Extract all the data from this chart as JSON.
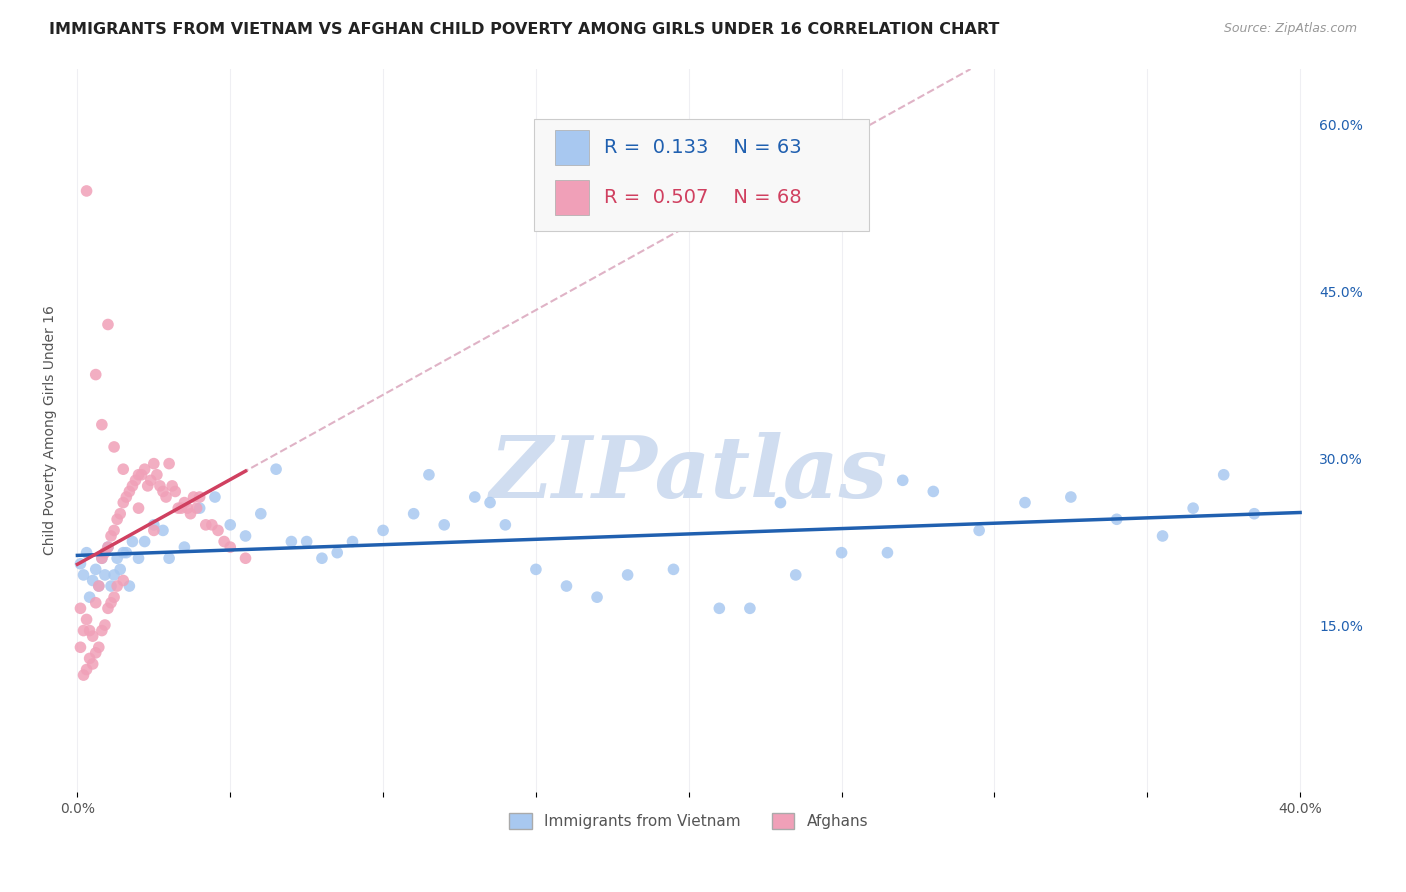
{
  "title": "IMMIGRANTS FROM VIETNAM VS AFGHAN CHILD POVERTY AMONG GIRLS UNDER 16 CORRELATION CHART",
  "source": "Source: ZipAtlas.com",
  "ylabel": "Child Poverty Among Girls Under 16",
  "xlim": [
    -0.003,
    0.403
  ],
  "ylim": [
    0.0,
    0.65
  ],
  "xtick_positions": [
    0.0,
    0.05,
    0.1,
    0.15,
    0.2,
    0.25,
    0.3,
    0.35,
    0.4
  ],
  "xtick_labels": [
    "0.0%",
    "",
    "",
    "",
    "",
    "",
    "",
    "",
    "40.0%"
  ],
  "ytick_vals_right": [
    0.15,
    0.3,
    0.45,
    0.6
  ],
  "ytick_labels_right": [
    "15.0%",
    "30.0%",
    "45.0%",
    "60.0%"
  ],
  "color_vietnam": "#a8c8f0",
  "color_afghan": "#f0a0b8",
  "color_vietnam_line": "#2060b0",
  "color_afghan_line": "#d04060",
  "color_dashed": "#d8a0b8",
  "background_color": "#ffffff",
  "grid_color": "#e0e0e8",
  "watermark_color": "#d0ddf0",
  "title_fontsize": 11.5,
  "source_fontsize": 9,
  "axis_fontsize": 10,
  "legend_fontsize": 14,
  "vietnam_x": [
    0.001,
    0.002,
    0.003,
    0.004,
    0.005,
    0.006,
    0.007,
    0.008,
    0.009,
    0.01,
    0.011,
    0.012,
    0.013,
    0.014,
    0.015,
    0.016,
    0.017,
    0.018,
    0.02,
    0.022,
    0.025,
    0.028,
    0.03,
    0.035,
    0.04,
    0.045,
    0.05,
    0.055,
    0.06,
    0.065,
    0.07,
    0.075,
    0.08,
    0.085,
    0.09,
    0.1,
    0.11,
    0.12,
    0.13,
    0.14,
    0.15,
    0.16,
    0.17,
    0.18,
    0.195,
    0.21,
    0.22,
    0.235,
    0.25,
    0.265,
    0.28,
    0.295,
    0.31,
    0.325,
    0.34,
    0.355,
    0.365,
    0.375,
    0.385,
    0.115,
    0.135,
    0.23,
    0.27
  ],
  "vietnam_y": [
    0.205,
    0.195,
    0.215,
    0.175,
    0.19,
    0.2,
    0.185,
    0.21,
    0.195,
    0.22,
    0.185,
    0.195,
    0.21,
    0.2,
    0.215,
    0.215,
    0.185,
    0.225,
    0.21,
    0.225,
    0.24,
    0.235,
    0.21,
    0.22,
    0.255,
    0.265,
    0.24,
    0.23,
    0.25,
    0.29,
    0.225,
    0.225,
    0.21,
    0.215,
    0.225,
    0.235,
    0.25,
    0.24,
    0.265,
    0.24,
    0.2,
    0.185,
    0.175,
    0.195,
    0.2,
    0.165,
    0.165,
    0.195,
    0.215,
    0.215,
    0.27,
    0.235,
    0.26,
    0.265,
    0.245,
    0.23,
    0.255,
    0.285,
    0.25,
    0.285,
    0.26,
    0.26,
    0.28
  ],
  "afghan_x": [
    0.001,
    0.001,
    0.002,
    0.002,
    0.003,
    0.003,
    0.004,
    0.004,
    0.005,
    0.005,
    0.006,
    0.006,
    0.007,
    0.007,
    0.008,
    0.008,
    0.009,
    0.009,
    0.01,
    0.01,
    0.011,
    0.011,
    0.012,
    0.012,
    0.013,
    0.013,
    0.014,
    0.015,
    0.015,
    0.016,
    0.017,
    0.018,
    0.019,
    0.02,
    0.021,
    0.022,
    0.023,
    0.024,
    0.025,
    0.026,
    0.027,
    0.028,
    0.029,
    0.03,
    0.031,
    0.032,
    0.033,
    0.034,
    0.035,
    0.036,
    0.037,
    0.038,
    0.039,
    0.04,
    0.042,
    0.044,
    0.046,
    0.048,
    0.05,
    0.055,
    0.003,
    0.01,
    0.006,
    0.008,
    0.012,
    0.015,
    0.02,
    0.025
  ],
  "afghan_y": [
    0.165,
    0.13,
    0.145,
    0.105,
    0.155,
    0.11,
    0.145,
    0.12,
    0.14,
    0.115,
    0.17,
    0.125,
    0.185,
    0.13,
    0.21,
    0.145,
    0.215,
    0.15,
    0.22,
    0.165,
    0.23,
    0.17,
    0.235,
    0.175,
    0.245,
    0.185,
    0.25,
    0.26,
    0.19,
    0.265,
    0.27,
    0.275,
    0.28,
    0.285,
    0.285,
    0.29,
    0.275,
    0.28,
    0.295,
    0.285,
    0.275,
    0.27,
    0.265,
    0.295,
    0.275,
    0.27,
    0.255,
    0.255,
    0.26,
    0.255,
    0.25,
    0.265,
    0.255,
    0.265,
    0.24,
    0.24,
    0.235,
    0.225,
    0.22,
    0.21,
    0.54,
    0.42,
    0.375,
    0.33,
    0.31,
    0.29,
    0.255,
    0.235
  ]
}
